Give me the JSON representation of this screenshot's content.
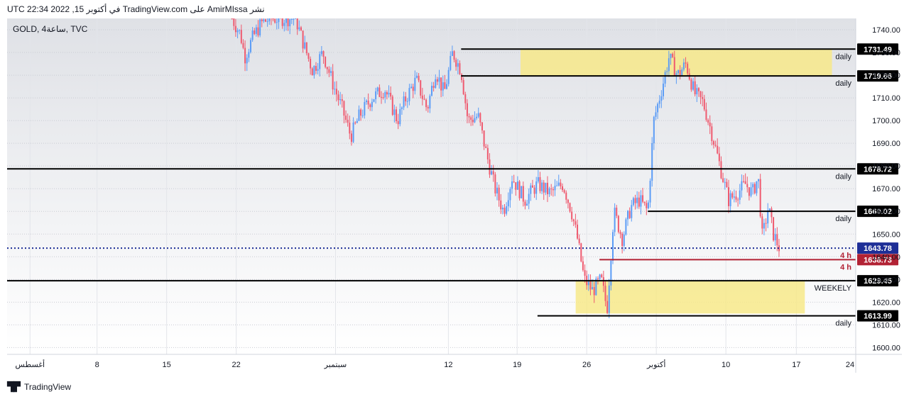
{
  "header": {
    "publish_line": "نشر AmirMIssa على TradingView.com في أكتوبر 15, 2022 22:34 UTC"
  },
  "symbol": {
    "label": "GOLD, 4ساعة, TVC"
  },
  "footer": {
    "brand": "TradingView",
    "logo": "tradingview-logo-icon"
  },
  "colors": {
    "up": "#5b9cf6",
    "down": "#ef5a6f",
    "zone": "#f7e98a",
    "last": "#1e2f97",
    "red_level": "#b22234"
  },
  "chart_data": {
    "type": "candlestick",
    "symbol": "GOLD",
    "timeframe": "4h",
    "ylim": [
      1597,
      1745
    ],
    "y_ticks": [
      1600,
      1610,
      1620,
      1630,
      1640,
      1650,
      1660,
      1670,
      1680,
      1690,
      1700,
      1710,
      1720,
      1730,
      1740
    ],
    "x_ticks": [
      {
        "label": "أغسطس",
        "pos": 0.027
      },
      {
        "label": "8",
        "pos": 0.106
      },
      {
        "label": "15",
        "pos": 0.188
      },
      {
        "label": "22",
        "pos": 0.27
      },
      {
        "label": "سبتمبر",
        "pos": 0.387
      },
      {
        "label": "12",
        "pos": 0.52
      },
      {
        "label": "19",
        "pos": 0.601
      },
      {
        "label": "26",
        "pos": 0.683
      },
      {
        "label": "أكتوبر",
        "pos": 0.765
      },
      {
        "label": "10",
        "pos": 0.847
      },
      {
        "label": "17",
        "pos": 0.93
      },
      {
        "label": "24",
        "pos": 1.0
      }
    ],
    "levels": [
      {
        "price": 1731.49,
        "label": "1731.49",
        "tag": "daily",
        "x_start": 0.535,
        "style": "black"
      },
      {
        "price": 1719.66,
        "label": "1719.66",
        "tag": "daily",
        "x_start": 0.535,
        "style": "black"
      },
      {
        "price": 1678.72,
        "label": "1678.72",
        "tag": "daily",
        "x_start": 0.0,
        "style": "black"
      },
      {
        "price": 1660.02,
        "label": "1660.02",
        "tag": "daily",
        "x_start": 0.755,
        "style": "black"
      },
      {
        "price": 1643.78,
        "label": "1643.78",
        "tag": "4 h",
        "x_start": 0.0,
        "style": "last"
      },
      {
        "price": 1638.73,
        "label": "1638.73",
        "tag": "4 h",
        "x_start": 0.698,
        "style": "red"
      },
      {
        "price": 1629.45,
        "label": "1629.45",
        "tag": "WEEKELY",
        "x_start": 0.0,
        "style": "black"
      },
      {
        "price": 1613.99,
        "label": "1613.99",
        "tag": "daily",
        "x_start": 0.625,
        "style": "black"
      }
    ],
    "zones": [
      {
        "from_price": 1719.66,
        "to_price": 1731.49,
        "x_start": 0.605,
        "x_end": 0.972
      },
      {
        "from_price": 1615.0,
        "to_price": 1629.45,
        "x_start": 0.67,
        "x_end": 0.94
      }
    ],
    "price_path": [
      {
        "x": 0.265,
        "y": 1745
      },
      {
        "x": 0.275,
        "y": 1738
      },
      {
        "x": 0.28,
        "y": 1728
      },
      {
        "x": 0.29,
        "y": 1737
      },
      {
        "x": 0.3,
        "y": 1743
      },
      {
        "x": 0.31,
        "y": 1745
      },
      {
        "x": 0.34,
        "y": 1745
      },
      {
        "x": 0.35,
        "y": 1733
      },
      {
        "x": 0.36,
        "y": 1722
      },
      {
        "x": 0.372,
        "y": 1730
      },
      {
        "x": 0.385,
        "y": 1715
      },
      {
        "x": 0.395,
        "y": 1705
      },
      {
        "x": 0.405,
        "y": 1693
      },
      {
        "x": 0.415,
        "y": 1702
      },
      {
        "x": 0.43,
        "y": 1710
      },
      {
        "x": 0.445,
        "y": 1714
      },
      {
        "x": 0.46,
        "y": 1700
      },
      {
        "x": 0.47,
        "y": 1710
      },
      {
        "x": 0.482,
        "y": 1718
      },
      {
        "x": 0.495,
        "y": 1705
      },
      {
        "x": 0.505,
        "y": 1722
      },
      {
        "x": 0.515,
        "y": 1712
      },
      {
        "x": 0.525,
        "y": 1730
      },
      {
        "x": 0.535,
        "y": 1722
      },
      {
        "x": 0.543,
        "y": 1700
      },
      {
        "x": 0.555,
        "y": 1702
      },
      {
        "x": 0.565,
        "y": 1685
      },
      {
        "x": 0.575,
        "y": 1670
      },
      {
        "x": 0.585,
        "y": 1660
      },
      {
        "x": 0.595,
        "y": 1675
      },
      {
        "x": 0.61,
        "y": 1665
      },
      {
        "x": 0.625,
        "y": 1672
      },
      {
        "x": 0.64,
        "y": 1668
      },
      {
        "x": 0.655,
        "y": 1672
      },
      {
        "x": 0.665,
        "y": 1660
      },
      {
        "x": 0.672,
        "y": 1648
      },
      {
        "x": 0.68,
        "y": 1630
      },
      {
        "x": 0.69,
        "y": 1625
      },
      {
        "x": 0.7,
        "y": 1630
      },
      {
        "x": 0.707,
        "y": 1617
      },
      {
        "x": 0.715,
        "y": 1660
      },
      {
        "x": 0.725,
        "y": 1648
      },
      {
        "x": 0.735,
        "y": 1662
      },
      {
        "x": 0.745,
        "y": 1665
      },
      {
        "x": 0.755,
        "y": 1660
      },
      {
        "x": 0.762,
        "y": 1700
      },
      {
        "x": 0.772,
        "y": 1715
      },
      {
        "x": 0.78,
        "y": 1728
      },
      {
        "x": 0.79,
        "y": 1720
      },
      {
        "x": 0.8,
        "y": 1725
      },
      {
        "x": 0.81,
        "y": 1712
      },
      {
        "x": 0.82,
        "y": 1708
      },
      {
        "x": 0.83,
        "y": 1695
      },
      {
        "x": 0.84,
        "y": 1680
      },
      {
        "x": 0.85,
        "y": 1665
      },
      {
        "x": 0.86,
        "y": 1668
      },
      {
        "x": 0.87,
        "y": 1672
      },
      {
        "x": 0.878,
        "y": 1668
      },
      {
        "x": 0.885,
        "y": 1675
      },
      {
        "x": 0.89,
        "y": 1648
      },
      {
        "x": 0.897,
        "y": 1662
      },
      {
        "x": 0.903,
        "y": 1650
      },
      {
        "x": 0.91,
        "y": 1643.78
      }
    ]
  }
}
